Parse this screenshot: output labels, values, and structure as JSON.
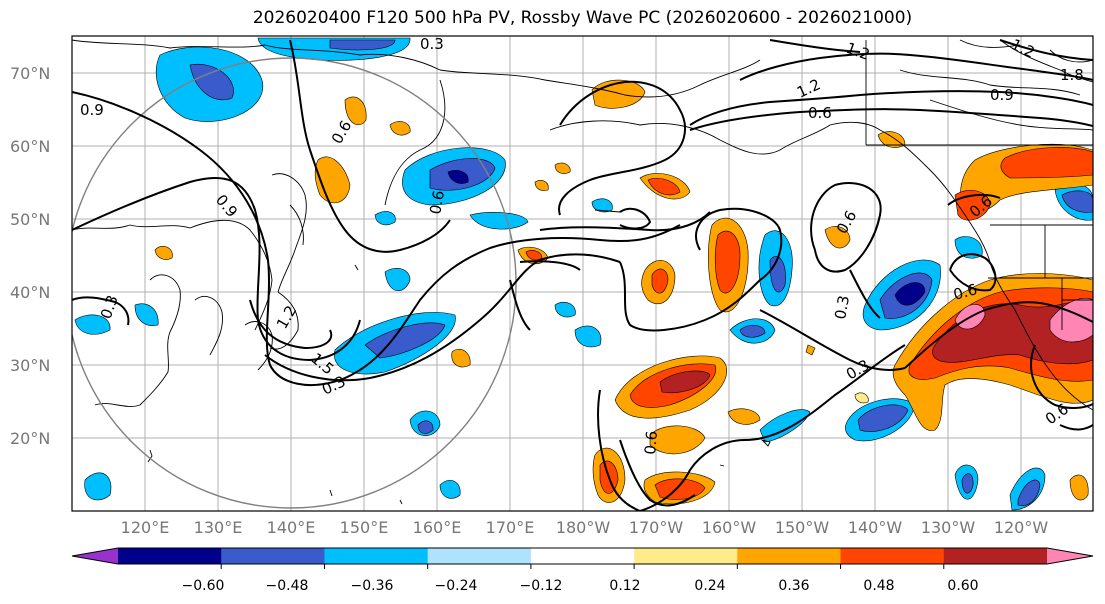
{
  "title": "2026020400 F120 500 hPa PV, Rossby Wave PC (2026020600 - 2026021000)",
  "lat_labels": [
    "70°N",
    "60°N",
    "50°N",
    "40°N",
    "30°N",
    "20°N"
  ],
  "lon_labels": [
    "120°E",
    "130°E",
    "140°E",
    "150°E",
    "160°E",
    "170°E",
    "180°W",
    "170°W",
    "160°W",
    "150°W",
    "140°W",
    "130°W",
    "120°W"
  ],
  "colorbar": {
    "colors": [
      "#9932cc",
      "#00008b",
      "#3a5bcc",
      "#00bfff",
      "#afe2fd",
      "#ffffff",
      "#ffeb8a",
      "#ffa500",
      "#ff4500",
      "#b22222",
      "#ff85b5"
    ],
    "labels": [
      "−0.60",
      "−0.48",
      "−0.36",
      "−0.24",
      "−0.12",
      "0.12",
      "0.24",
      "0.36",
      "0.48",
      "0.60"
    ]
  },
  "contour_labels": [
    "0.3",
    "1.2",
    "1.2",
    "0.9",
    "1.8",
    "1.2",
    "0.6",
    "0.9",
    "0.9",
    "0.6",
    "0.6",
    "0.6",
    "1.5",
    "0.3",
    "1.2",
    "0.3",
    "0.6",
    "0.3",
    "0.3",
    "0.6",
    "0.6",
    "0.6"
  ]
}
